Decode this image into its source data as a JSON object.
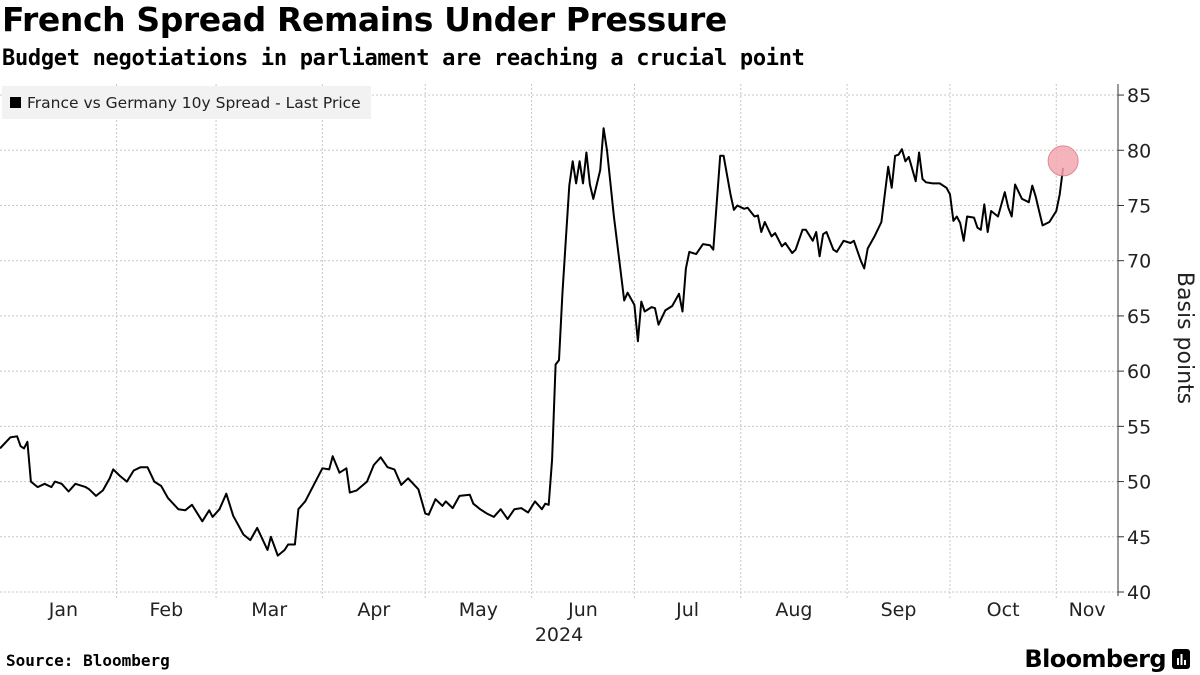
{
  "title": "French Spread Remains Under Pressure",
  "subtitle": "Budget negotiations in parliament are reaching a crucial point",
  "source": "Source: Bloomberg",
  "brand": "Bloomberg",
  "chart_data": {
    "type": "line",
    "ylabel": "Basis points",
    "ylim": [
      40,
      86
    ],
    "yticks": [
      40,
      45,
      50,
      55,
      60,
      65,
      70,
      75,
      80,
      85
    ],
    "xlim": [
      "2023-12-29",
      "2024-11-19"
    ],
    "month_ticks": [
      "Jan",
      "Feb",
      "Mar",
      "Apr",
      "May",
      "Jun",
      "Jul",
      "Aug",
      "Sep",
      "Oct",
      "Nov"
    ],
    "month_dates": [
      "2024-01-01",
      "2024-02-01",
      "2024-03-01",
      "2024-04-01",
      "2024-05-01",
      "2024-06-01",
      "2024-07-01",
      "2024-08-01",
      "2024-09-01",
      "2024-10-01",
      "2024-11-01"
    ],
    "year_label": "2024",
    "grid": true,
    "legend_position": "top-left",
    "highlight_last_point": true,
    "highlight_color": "#f4a6b0",
    "line_color": "#000000",
    "series": [
      {
        "name": "France vs Germany 10y Spread - Last Price",
        "points": [
          [
            "2023-12-29",
            53.0
          ],
          [
            "2024-01-01",
            54.0
          ],
          [
            "2024-01-03",
            54.1
          ],
          [
            "2024-01-04",
            53.2
          ],
          [
            "2024-01-05",
            53.0
          ],
          [
            "2024-01-06",
            53.6
          ],
          [
            "2024-01-07",
            50.0
          ],
          [
            "2024-01-09",
            49.5
          ],
          [
            "2024-01-11",
            49.8
          ],
          [
            "2024-01-13",
            49.5
          ],
          [
            "2024-01-14",
            50.0
          ],
          [
            "2024-01-16",
            49.8
          ],
          [
            "2024-01-18",
            49.1
          ],
          [
            "2024-01-20",
            49.8
          ],
          [
            "2024-01-23",
            49.5
          ],
          [
            "2024-01-24",
            49.3
          ],
          [
            "2024-01-26",
            48.7
          ],
          [
            "2024-01-28",
            49.2
          ],
          [
            "2024-01-30",
            50.3
          ],
          [
            "2024-01-31",
            51.1
          ],
          [
            "2024-02-02",
            50.5
          ],
          [
            "2024-02-04",
            50.0
          ],
          [
            "2024-02-06",
            51.0
          ],
          [
            "2024-02-08",
            51.3
          ],
          [
            "2024-02-10",
            51.3
          ],
          [
            "2024-02-12",
            50.0
          ],
          [
            "2024-02-14",
            49.6
          ],
          [
            "2024-02-16",
            48.5
          ],
          [
            "2024-02-19",
            47.5
          ],
          [
            "2024-02-21",
            47.4
          ],
          [
            "2024-02-23",
            47.9
          ],
          [
            "2024-02-26",
            46.4
          ],
          [
            "2024-02-28",
            47.4
          ],
          [
            "2024-02-29",
            46.8
          ],
          [
            "2024-03-02",
            47.5
          ],
          [
            "2024-03-04",
            48.9
          ],
          [
            "2024-03-06",
            46.9
          ],
          [
            "2024-03-09",
            45.2
          ],
          [
            "2024-03-11",
            44.7
          ],
          [
            "2024-03-13",
            45.8
          ],
          [
            "2024-03-16",
            43.8
          ],
          [
            "2024-03-17",
            45.0
          ],
          [
            "2024-03-19",
            43.3
          ],
          [
            "2024-03-21",
            43.8
          ],
          [
            "2024-03-22",
            44.3
          ],
          [
            "2024-03-24",
            44.3
          ],
          [
            "2024-03-25",
            47.5
          ],
          [
            "2024-03-27",
            48.2
          ],
          [
            "2024-03-30",
            50.0
          ],
          [
            "2024-04-01",
            51.2
          ],
          [
            "2024-04-03",
            51.1
          ],
          [
            "2024-04-04",
            52.3
          ],
          [
            "2024-04-06",
            50.8
          ],
          [
            "2024-04-08",
            51.2
          ],
          [
            "2024-04-09",
            49.0
          ],
          [
            "2024-04-11",
            49.2
          ],
          [
            "2024-04-14",
            50.0
          ],
          [
            "2024-04-16",
            51.5
          ],
          [
            "2024-04-18",
            52.2
          ],
          [
            "2024-04-20",
            51.3
          ],
          [
            "2024-04-22",
            51.1
          ],
          [
            "2024-04-24",
            49.7
          ],
          [
            "2024-04-26",
            50.3
          ],
          [
            "2024-04-29",
            49.3
          ],
          [
            "2024-05-01",
            47.1
          ],
          [
            "2024-05-02",
            47.0
          ],
          [
            "2024-05-04",
            48.4
          ],
          [
            "2024-05-06",
            47.8
          ],
          [
            "2024-05-07",
            48.2
          ],
          [
            "2024-05-09",
            47.6
          ],
          [
            "2024-05-11",
            48.7
          ],
          [
            "2024-05-14",
            48.8
          ],
          [
            "2024-05-15",
            48.0
          ],
          [
            "2024-05-17",
            47.5
          ],
          [
            "2024-05-19",
            47.1
          ],
          [
            "2024-05-21",
            46.8
          ],
          [
            "2024-05-23",
            47.5
          ],
          [
            "2024-05-25",
            46.6
          ],
          [
            "2024-05-27",
            47.5
          ],
          [
            "2024-05-29",
            47.6
          ],
          [
            "2024-05-31",
            47.2
          ],
          [
            "2024-06-02",
            48.2
          ],
          [
            "2024-06-04",
            47.5
          ],
          [
            "2024-06-05",
            48.0
          ],
          [
            "2024-06-06",
            47.9
          ],
          [
            "2024-06-07",
            52.0
          ],
          [
            "2024-06-08",
            60.6
          ],
          [
            "2024-06-09",
            61.0
          ],
          [
            "2024-06-10",
            67.0
          ],
          [
            "2024-06-11",
            72.0
          ],
          [
            "2024-06-12",
            76.8
          ],
          [
            "2024-06-13",
            79.0
          ],
          [
            "2024-06-14",
            77.0
          ],
          [
            "2024-06-15",
            79.0
          ],
          [
            "2024-06-16",
            77.0
          ],
          [
            "2024-06-17",
            79.8
          ],
          [
            "2024-06-18",
            76.9
          ],
          [
            "2024-06-19",
            75.6
          ],
          [
            "2024-06-21",
            78.2
          ],
          [
            "2024-06-22",
            82.0
          ],
          [
            "2024-06-23",
            80.0
          ],
          [
            "2024-06-25",
            74.0
          ],
          [
            "2024-06-27",
            69.0
          ],
          [
            "2024-06-28",
            66.4
          ],
          [
            "2024-06-29",
            67.1
          ],
          [
            "2024-07-01",
            66.0
          ],
          [
            "2024-07-02",
            62.7
          ],
          [
            "2024-07-03",
            66.3
          ],
          [
            "2024-07-04",
            65.4
          ],
          [
            "2024-07-06",
            65.8
          ],
          [
            "2024-07-07",
            65.7
          ],
          [
            "2024-07-08",
            64.2
          ],
          [
            "2024-07-10",
            65.5
          ],
          [
            "2024-07-12",
            65.9
          ],
          [
            "2024-07-14",
            67.0
          ],
          [
            "2024-07-15",
            65.4
          ],
          [
            "2024-07-16",
            69.3
          ],
          [
            "2024-07-17",
            70.8
          ],
          [
            "2024-07-19",
            70.6
          ],
          [
            "2024-07-21",
            71.5
          ],
          [
            "2024-07-23",
            71.4
          ],
          [
            "2024-07-24",
            71.0
          ],
          [
            "2024-07-26",
            79.5
          ],
          [
            "2024-07-27",
            79.5
          ],
          [
            "2024-07-29",
            76.0
          ],
          [
            "2024-07-30",
            74.6
          ],
          [
            "2024-07-31",
            75.0
          ],
          [
            "2024-08-02",
            74.7
          ],
          [
            "2024-08-03",
            74.8
          ],
          [
            "2024-08-05",
            74.0
          ],
          [
            "2024-08-06",
            74.1
          ],
          [
            "2024-08-07",
            72.6
          ],
          [
            "2024-08-08",
            73.5
          ],
          [
            "2024-08-10",
            72.2
          ],
          [
            "2024-08-11",
            72.5
          ],
          [
            "2024-08-13",
            71.3
          ],
          [
            "2024-08-14",
            71.6
          ],
          [
            "2024-08-16",
            70.7
          ],
          [
            "2024-08-17",
            71.0
          ],
          [
            "2024-08-19",
            72.8
          ],
          [
            "2024-08-20",
            72.8
          ],
          [
            "2024-08-22",
            71.8
          ],
          [
            "2024-08-23",
            72.6
          ],
          [
            "2024-08-24",
            70.4
          ],
          [
            "2024-08-25",
            72.4
          ],
          [
            "2024-08-26",
            72.6
          ],
          [
            "2024-08-28",
            71.0
          ],
          [
            "2024-08-29",
            70.8
          ],
          [
            "2024-08-31",
            71.8
          ],
          [
            "2024-09-02",
            71.6
          ],
          [
            "2024-09-03",
            71.8
          ],
          [
            "2024-09-05",
            70.0
          ],
          [
            "2024-09-06",
            69.3
          ],
          [
            "2024-09-07",
            71.1
          ],
          [
            "2024-09-09",
            72.2
          ],
          [
            "2024-09-11",
            73.5
          ],
          [
            "2024-09-13",
            78.5
          ],
          [
            "2024-09-14",
            76.6
          ],
          [
            "2024-09-15",
            79.5
          ],
          [
            "2024-09-16",
            79.6
          ],
          [
            "2024-09-17",
            80.1
          ],
          [
            "2024-09-18",
            79.0
          ],
          [
            "2024-09-19",
            79.4
          ],
          [
            "2024-09-21",
            77.2
          ],
          [
            "2024-09-22",
            79.8
          ],
          [
            "2024-09-23",
            77.4
          ],
          [
            "2024-09-24",
            77.1
          ],
          [
            "2024-09-26",
            77.0
          ],
          [
            "2024-09-28",
            77.0
          ],
          [
            "2024-09-30",
            76.6
          ],
          [
            "2024-10-01",
            76.0
          ],
          [
            "2024-10-02",
            73.6
          ],
          [
            "2024-10-03",
            74.0
          ],
          [
            "2024-10-04",
            73.4
          ],
          [
            "2024-10-05",
            71.8
          ],
          [
            "2024-10-06",
            74.0
          ],
          [
            "2024-10-08",
            73.9
          ],
          [
            "2024-10-09",
            73.0
          ],
          [
            "2024-10-10",
            72.8
          ],
          [
            "2024-10-11",
            75.1
          ],
          [
            "2024-10-12",
            72.6
          ],
          [
            "2024-10-13",
            74.5
          ],
          [
            "2024-10-15",
            74.0
          ],
          [
            "2024-10-17",
            76.2
          ],
          [
            "2024-10-18",
            74.8
          ],
          [
            "2024-10-19",
            74.0
          ],
          [
            "2024-10-20",
            76.9
          ],
          [
            "2024-10-22",
            75.6
          ],
          [
            "2024-10-24",
            75.3
          ],
          [
            "2024-10-25",
            76.8
          ],
          [
            "2024-10-26",
            75.8
          ],
          [
            "2024-10-27",
            74.5
          ],
          [
            "2024-10-28",
            73.2
          ],
          [
            "2024-10-30",
            73.5
          ],
          [
            "2024-11-01",
            74.5
          ],
          [
            "2024-11-02",
            76.0
          ],
          [
            "2024-11-03",
            78.4
          ]
        ]
      }
    ]
  }
}
